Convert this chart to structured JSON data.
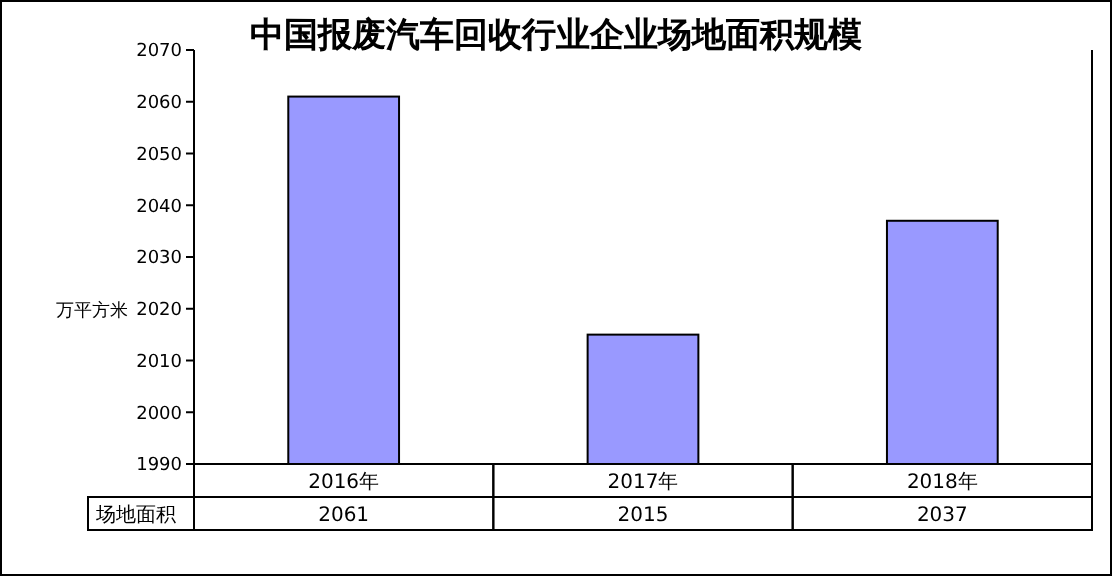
{
  "chart_data": {
    "type": "bar",
    "title": "中国报废汽车回收行业企业场地面积规模",
    "ylabel": "万平方米",
    "categories": [
      "2016年",
      "2017年",
      "2018年"
    ],
    "series": [
      {
        "name": "场地面积",
        "color": "#9999ff",
        "values": [
          2061,
          2015,
          2037
        ]
      }
    ],
    "ylim": [
      1990,
      2070
    ],
    "yticks": [
      1990,
      2000,
      2010,
      2020,
      2030,
      2040,
      2050,
      2060,
      2070
    ],
    "data_labels": true
  }
}
